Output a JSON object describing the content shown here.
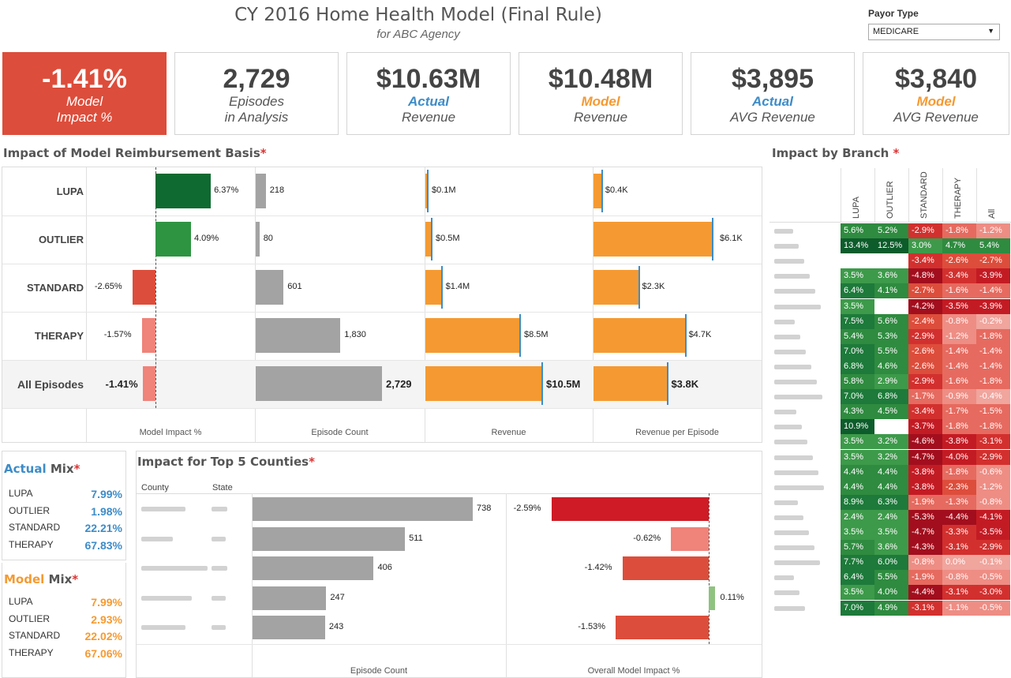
{
  "header": {
    "title": "CY 2016 Home Health Model (Final Rule)",
    "subtitle": "for ABC Agency",
    "payor_label": "Payor Type",
    "payor_value": "MEDICARE"
  },
  "kpis": [
    {
      "value": "-1.41%",
      "line1": "Model",
      "line2": "Impact %"
    },
    {
      "value": "2,729",
      "line1": "Episodes",
      "line2": "in Analysis"
    },
    {
      "value": "$10.63M",
      "line1": "Actual",
      "line2": "Revenue"
    },
    {
      "value": "$10.48M",
      "line1": "Model",
      "line2": "Revenue"
    },
    {
      "value": "$3,895",
      "line1": "Actual",
      "line2": "AVG Revenue"
    },
    {
      "value": "$3,840",
      "line1": "Model",
      "line2": "AVG Revenue"
    }
  ],
  "colors": {
    "red": "#dd4d3b",
    "blue": "#3d8cc8",
    "orange": "#f59a32",
    "darkgreen": "#0e6a30",
    "green": "#2e9442",
    "lightred": "#f0837a",
    "gray": "#a3a3a3"
  },
  "impact": {
    "title": "Impact of Model Reimbursement Basis",
    "star": "*",
    "axes": [
      "Model Impact %",
      "Episode Count",
      "Revenue",
      "Revenue per Episode"
    ],
    "rows": [
      {
        "label": "LUPA",
        "impact": 6.37,
        "impact_label": "6.37%",
        "count": 218,
        "count_label": "218",
        "revenue": 0.1,
        "revenue_label": "$0.1M",
        "rpe": 0.4,
        "rpe_label": "$0.4K"
      },
      {
        "label": "OUTLIER",
        "impact": 4.09,
        "impact_label": "4.09%",
        "count": 80,
        "count_label": "80",
        "revenue": 0.5,
        "revenue_label": "$0.5M",
        "rpe": 6.1,
        "rpe_label": "$6.1K"
      },
      {
        "label": "STANDARD",
        "impact": -2.65,
        "impact_label": "-2.65%",
        "count": 601,
        "count_label": "601",
        "revenue": 1.4,
        "revenue_label": "$1.4M",
        "rpe": 2.3,
        "rpe_label": "$2.3K"
      },
      {
        "label": "THERAPY",
        "impact": -1.57,
        "impact_label": "-1.57%",
        "count": 1830,
        "count_label": "1,830",
        "revenue": 8.5,
        "revenue_label": "$8.5M",
        "rpe": 4.7,
        "rpe_label": "$4.7K"
      },
      {
        "label": "All Episodes",
        "impact": -1.41,
        "impact_label": "-1.41%",
        "count": 2729,
        "count_label": "2,729",
        "revenue": 10.5,
        "revenue_label": "$10.5M",
        "rpe": 3.8,
        "rpe_label": "$3.8K"
      }
    ]
  },
  "actual_mix": {
    "title_word": "Actual",
    "title_rest": " Mix",
    "star": "*",
    "items": [
      {
        "label": "LUPA",
        "value": "7.99%"
      },
      {
        "label": "OUTLIER",
        "value": "1.98%"
      },
      {
        "label": "STANDARD",
        "value": "22.21%"
      },
      {
        "label": "THERAPY",
        "value": "67.83%"
      }
    ]
  },
  "model_mix": {
    "title_word": "Model",
    "title_rest": " Mix",
    "star": "*",
    "items": [
      {
        "label": "LUPA",
        "value": "7.99%"
      },
      {
        "label": "OUTLIER",
        "value": "2.93%"
      },
      {
        "label": "STANDARD",
        "value": "22.02%"
      },
      {
        "label": "THERAPY",
        "value": "67.06%"
      }
    ]
  },
  "counties": {
    "title": "Impact for Top 5 Counties",
    "star": "*",
    "col_county": "County",
    "col_state": "State",
    "axis_count": "Episode Count",
    "axis_impact": "Overall Model Impact %",
    "rows": [
      {
        "count": 738,
        "count_label": "738",
        "impact": -2.59,
        "impact_label": "-2.59%"
      },
      {
        "count": 511,
        "count_label": "511",
        "impact": -0.62,
        "impact_label": "-0.62%"
      },
      {
        "count": 406,
        "count_label": "406",
        "impact": -1.42,
        "impact_label": "-1.42%"
      },
      {
        "count": 247,
        "count_label": "247",
        "impact": 0.11,
        "impact_label": "0.11%"
      },
      {
        "count": 243,
        "count_label": "243",
        "impact": -1.53,
        "impact_label": "-1.53%"
      }
    ]
  },
  "branch": {
    "title": "Impact by Branch",
    "star": "*",
    "columns": [
      "LUPA",
      "OUTLIER",
      "STANDARD",
      "THERAPY",
      "All"
    ],
    "rows": [
      [
        "5.6%",
        "5.2%",
        "-2.9%",
        "-1.8%",
        "-1.2%"
      ],
      [
        "13.4%",
        "12.5%",
        "3.0%",
        "4.7%",
        "5.4%"
      ],
      [
        "",
        "",
        "-3.4%",
        "-2.6%",
        "-2.7%"
      ],
      [
        "3.5%",
        "3.6%",
        "-4.8%",
        "-3.4%",
        "-3.9%"
      ],
      [
        "6.4%",
        "4.1%",
        "-2.7%",
        "-1.6%",
        "-1.4%"
      ],
      [
        "3.5%",
        "",
        "-4.2%",
        "-3.5%",
        "-3.9%"
      ],
      [
        "7.5%",
        "5.6%",
        "-2.4%",
        "-0.8%",
        "-0.2%"
      ],
      [
        "5.4%",
        "5.3%",
        "-2.9%",
        "-1.2%",
        "-1.8%"
      ],
      [
        "7.0%",
        "5.5%",
        "-2.6%",
        "-1.4%",
        "-1.4%"
      ],
      [
        "6.8%",
        "4.6%",
        "-2.6%",
        "-1.4%",
        "-1.4%"
      ],
      [
        "5.8%",
        "2.9%",
        "-2.9%",
        "-1.6%",
        "-1.8%"
      ],
      [
        "7.0%",
        "6.8%",
        "-1.7%",
        "-0.9%",
        "-0.4%"
      ],
      [
        "4.3%",
        "4.5%",
        "-3.4%",
        "-1.7%",
        "-1.5%"
      ],
      [
        "10.9%",
        "",
        "-3.7%",
        "-1.8%",
        "-1.8%"
      ],
      [
        "3.5%",
        "3.2%",
        "-4.6%",
        "-3.8%",
        "-3.1%"
      ],
      [
        "3.5%",
        "3.2%",
        "-4.7%",
        "-4.0%",
        "-2.9%"
      ],
      [
        "4.4%",
        "4.4%",
        "-3.8%",
        "-1.8%",
        "-0.6%"
      ],
      [
        "4.4%",
        "4.4%",
        "-3.8%",
        "-2.3%",
        "-1.2%"
      ],
      [
        "8.9%",
        "6.3%",
        "-1.9%",
        "-1.3%",
        "-0.8%"
      ],
      [
        "2.4%",
        "2.4%",
        "-5.3%",
        "-4.4%",
        "-4.1%"
      ],
      [
        "3.5%",
        "3.5%",
        "-4.7%",
        "-3.3%",
        "-3.5%"
      ],
      [
        "5.7%",
        "3.6%",
        "-4.3%",
        "-3.1%",
        "-2.9%"
      ],
      [
        "7.7%",
        "6.0%",
        "-0.8%",
        "0.0%",
        "-0.1%"
      ],
      [
        "6.4%",
        "5.5%",
        "-1.9%",
        "-0.8%",
        "-0.5%"
      ],
      [
        "3.5%",
        "4.0%",
        "-4.4%",
        "-3.1%",
        "-3.0%"
      ],
      [
        "7.0%",
        "4.9%",
        "-3.1%",
        "-1.1%",
        "-0.5%"
      ]
    ]
  }
}
